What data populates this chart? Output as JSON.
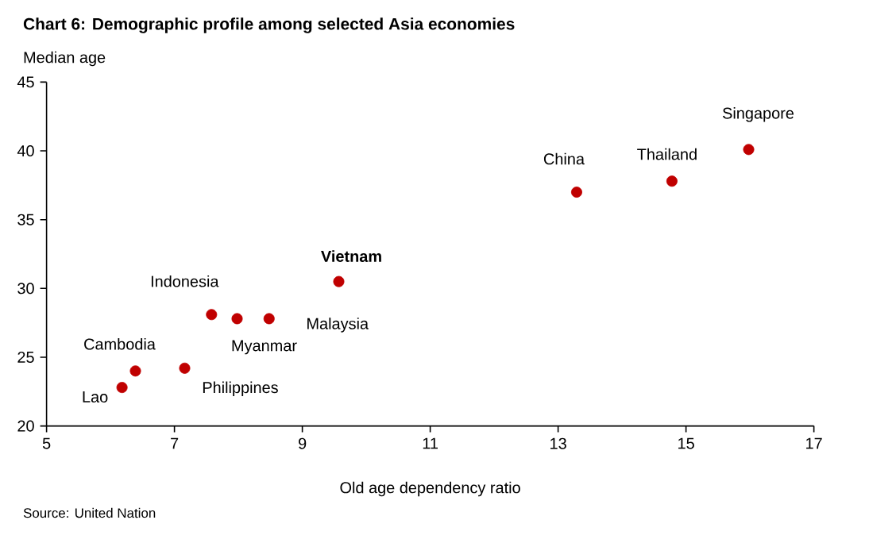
{
  "chart_data": {
    "type": "scatter",
    "title": "Chart 6: Demographic profile among selected Asia economies",
    "xlabel": "Old age dependency ratio",
    "ylabel": "Median age",
    "x": [
      6.18,
      6.39,
      7.16,
      7.58,
      7.98,
      8.48,
      9.57,
      13.29,
      14.78,
      15.98
    ],
    "series": [
      {
        "color": "#c00000",
        "values": [
          22.8,
          24.0,
          24.2,
          28.1,
          27.8,
          27.8,
          30.5,
          37.0,
          37.8,
          40.1
        ]
      }
    ],
    "xlim": [
      5,
      17
    ],
    "xticks": [
      5,
      7,
      9,
      11,
      13,
      15,
      17
    ],
    "ylim": [
      20,
      45
    ],
    "yticks": [
      20,
      25,
      30,
      35,
      40,
      45
    ],
    "marker": "circle",
    "grid": false,
    "legend": false,
    "annotations": [
      {
        "text": "Lao",
        "x": 6.18,
        "y": 22.8
      },
      {
        "text": "Cambodia",
        "x": 6.39,
        "y": 24.0
      },
      {
        "text": "Philippines",
        "x": 7.16,
        "y": 24.2
      },
      {
        "text": "Indonesia",
        "x": 7.58,
        "y": 28.1
      },
      {
        "text": "Myanmar",
        "x": 7.98,
        "y": 27.8
      },
      {
        "text": "Malaysia",
        "x": 8.48,
        "y": 27.8
      },
      {
        "text": "**Vietnam**",
        "x": 9.57,
        "y": 30.5
      },
      {
        "text": "China",
        "x": 13.29,
        "y": 37.0
      },
      {
        "text": "Thailand",
        "x": 14.78,
        "y": 37.8
      },
      {
        "text": "Singapore",
        "x": 15.98,
        "y": 40.1
      },
      "Source: United Nation"
    ]
  }
}
